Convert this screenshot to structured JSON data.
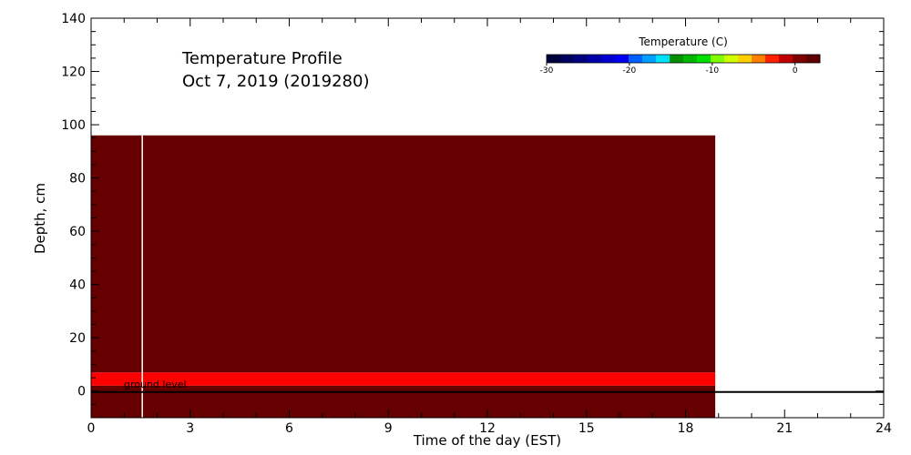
{
  "chart_data": {
    "type": "heatmap",
    "title": "Temperature Profile",
    "subtitle": "Oct  7, 2019 (2019280)",
    "xlabel": "Time of the day (EST)",
    "ylabel": "Depth, cm",
    "xlim": [
      0,
      24
    ],
    "ylim": [
      -10,
      140
    ],
    "x_ticks": [
      0,
      3,
      6,
      9,
      12,
      15,
      18,
      21,
      24
    ],
    "y_ticks": [
      0,
      20,
      40,
      60,
      80,
      100,
      120,
      140
    ],
    "ground_level_label": "ground level",
    "ground_level_depth": 0,
    "data_end_time": 18.9,
    "gap_time": 1.55,
    "layers": [
      {
        "depth_from": 2,
        "depth_to": 7,
        "color": "#ff0000",
        "temperature_bin": "above 2"
      },
      {
        "depth_from": 7,
        "depth_to": 96,
        "color": "#660000",
        "temperature_bin": "top of scale"
      },
      {
        "depth_from": -10,
        "depth_to": 2,
        "color": "#660000",
        "temperature_bin": "top of scale"
      }
    ],
    "colorbar": {
      "title": "Temperature (C)",
      "range": [
        -30,
        3
      ],
      "ticks": [
        -30,
        -20,
        -10,
        0
      ],
      "colors": [
        "#00003a",
        "#000060",
        "#000080",
        "#0000a8",
        "#0000d0",
        "#0000f0",
        "#0060ff",
        "#00a0ff",
        "#00e0ff",
        "#009000",
        "#00b800",
        "#00e000",
        "#80ff00",
        "#d0ff00",
        "#ffd000",
        "#ff8000",
        "#ff2000",
        "#c00000",
        "#800000",
        "#600000"
      ]
    }
  }
}
